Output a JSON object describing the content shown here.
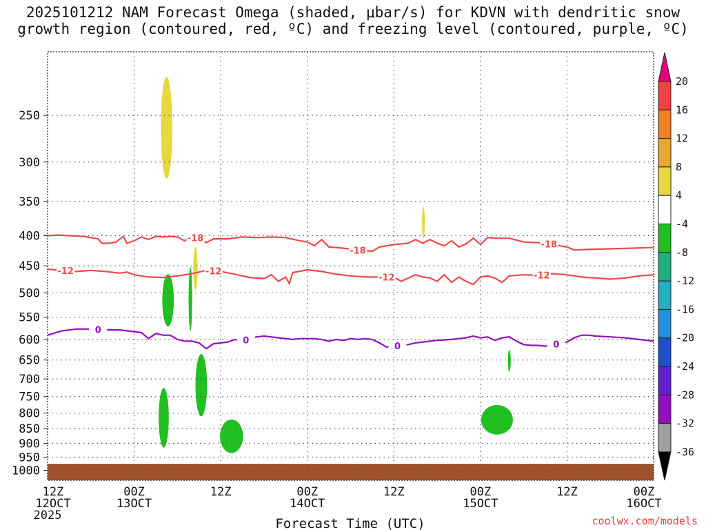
{
  "title_line1": "2025101212 NAM Forecast Omega (shaded, μbar/s) for KDVN with dendritic snow",
  "title_line2": "growth region (contoured, red, ºC) and freezing level (contoured, purple, ºC)",
  "credit": "coolwx.com/models",
  "chart_data": {
    "type": "time-height cross section",
    "xlabel": "Forecast Time (UTC)",
    "x_ticks": [
      {
        "hour": 0,
        "line1": "12Z",
        "line2": "12OCT",
        "line3": "2025"
      },
      {
        "hour": 12,
        "line1": "00Z",
        "line2": "13OCT",
        "line3": ""
      },
      {
        "hour": 24,
        "line1": "12Z",
        "line2": "",
        "line3": ""
      },
      {
        "hour": 36,
        "line1": "00Z",
        "line2": "14OCT",
        "line3": ""
      },
      {
        "hour": 48,
        "line1": "12Z",
        "line2": "",
        "line3": ""
      },
      {
        "hour": 60,
        "line1": "00Z",
        "line2": "15OCT",
        "line3": ""
      },
      {
        "hour": 72,
        "line1": "12Z",
        "line2": "",
        "line3": ""
      },
      {
        "hour": 84,
        "line1": "00Z",
        "line2": "16OCT",
        "line3": ""
      }
    ],
    "y_ticks": [
      250,
      300,
      350,
      400,
      450,
      500,
      550,
      600,
      650,
      700,
      750,
      800,
      850,
      900,
      950,
      1000
    ],
    "ylim_hPa": [
      195,
      1040
    ],
    "y_scale": "log",
    "xlim_hours": [
      0,
      84
    ],
    "grid": "dotted",
    "colorbar": {
      "labels": [
        "20",
        "16",
        "12",
        "8",
        "4",
        "-4",
        "-8",
        "-12",
        "-16",
        "-20",
        "-24",
        "-28",
        "-32",
        "-36"
      ],
      "colors": [
        "#e8007a",
        "#f04040",
        "#f08020",
        "#e8a830",
        "#e8d840",
        "#ffffff",
        "#20c020",
        "#20b080",
        "#20b0c0",
        "#2090e0",
        "#2050d0",
        "#6020d0",
        "#9010c0",
        "#a0a0a0",
        "#000000"
      ]
    },
    "contours": [
      {
        "label": "-18",
        "color": "#f04848",
        "label_hours": [
          20.5,
          43,
          69.5
        ],
        "points": [
          [
            0,
            400
          ],
          [
            1.5,
            399
          ],
          [
            3,
            400
          ],
          [
            5,
            401
          ],
          [
            7,
            405
          ],
          [
            7.5,
            412
          ],
          [
            8.5,
            412
          ],
          [
            9.5,
            410
          ],
          [
            10.5,
            401
          ],
          [
            11,
            412
          ],
          [
            12,
            408
          ],
          [
            13,
            402
          ],
          [
            14,
            406
          ],
          [
            15,
            401
          ],
          [
            16,
            402
          ],
          [
            17,
            401
          ],
          [
            18,
            402
          ],
          [
            19,
            408
          ],
          [
            20,
            402
          ],
          [
            21,
            404
          ],
          [
            22,
            411
          ],
          [
            23,
            405
          ],
          [
            25,
            405
          ],
          [
            27,
            402
          ],
          [
            29,
            403
          ],
          [
            31,
            402
          ],
          [
            33,
            403
          ],
          [
            35,
            408
          ],
          [
            36,
            410
          ],
          [
            37,
            416
          ],
          [
            38,
            406
          ],
          [
            39,
            418
          ],
          [
            41,
            420
          ],
          [
            43,
            423
          ],
          [
            45,
            425
          ],
          [
            46,
            418
          ],
          [
            48,
            414
          ],
          [
            50,
            412
          ],
          [
            51,
            406
          ],
          [
            52,
            412
          ],
          [
            53,
            406
          ],
          [
            54,
            412
          ],
          [
            55,
            416
          ],
          [
            56,
            408
          ],
          [
            57,
            418
          ],
          [
            58,
            413
          ],
          [
            59,
            404
          ],
          [
            60,
            414
          ],
          [
            61,
            403
          ],
          [
            62,
            404
          ],
          [
            64,
            404
          ],
          [
            66,
            410
          ],
          [
            68,
            411
          ],
          [
            70,
            414
          ],
          [
            72,
            418
          ],
          [
            73,
            423
          ],
          [
            75,
            422
          ],
          [
            78,
            421
          ],
          [
            81,
            420
          ],
          [
            84,
            419
          ]
        ]
      },
      {
        "label": "-12",
        "color": "#f04848",
        "label_hours": [
          2.5,
          23,
          47,
          68.5
        ],
        "points": [
          [
            0,
            456
          ],
          [
            2,
            458
          ],
          [
            4,
            460
          ],
          [
            6,
            458
          ],
          [
            8,
            460
          ],
          [
            10,
            463
          ],
          [
            11,
            461
          ],
          [
            12,
            466
          ],
          [
            14,
            470
          ],
          [
            16,
            471
          ],
          [
            18,
            468
          ],
          [
            20,
            464
          ],
          [
            22,
            458
          ],
          [
            24,
            460
          ],
          [
            26,
            465
          ],
          [
            28,
            471
          ],
          [
            30,
            473
          ],
          [
            31,
            466
          ],
          [
            32,
            478
          ],
          [
            33,
            470
          ],
          [
            33.5,
            482
          ],
          [
            34,
            462
          ],
          [
            36,
            457
          ],
          [
            38,
            460
          ],
          [
            40,
            465
          ],
          [
            42,
            468
          ],
          [
            44,
            470
          ],
          [
            46,
            470
          ],
          [
            48,
            470
          ],
          [
            49,
            478
          ],
          [
            50,
            472
          ],
          [
            51,
            466
          ],
          [
            52,
            470
          ],
          [
            53,
            472
          ],
          [
            54,
            478
          ],
          [
            55,
            466
          ],
          [
            56,
            480
          ],
          [
            57,
            470
          ],
          [
            58,
            478
          ],
          [
            59,
            484
          ],
          [
            60,
            470
          ],
          [
            61,
            468
          ],
          [
            62,
            472
          ],
          [
            63,
            480
          ],
          [
            64,
            468
          ],
          [
            66,
            466
          ],
          [
            68,
            467
          ],
          [
            70,
            464
          ],
          [
            72,
            466
          ],
          [
            74,
            470
          ],
          [
            76,
            472
          ],
          [
            78,
            474
          ],
          [
            80,
            472
          ],
          [
            82,
            468
          ],
          [
            84,
            466
          ]
        ]
      },
      {
        "label": "0",
        "color": "#9010c0",
        "label_hours": [
          7,
          27.5,
          48.5,
          70.5
        ],
        "points": [
          [
            0,
            590
          ],
          [
            2,
            580
          ],
          [
            4,
            576
          ],
          [
            6,
            576
          ],
          [
            8,
            578
          ],
          [
            10,
            578
          ],
          [
            12,
            582
          ],
          [
            13,
            584
          ],
          [
            14,
            598
          ],
          [
            15,
            586
          ],
          [
            16,
            590
          ],
          [
            17,
            590
          ],
          [
            18,
            600
          ],
          [
            19,
            604
          ],
          [
            20,
            604
          ],
          [
            21,
            608
          ],
          [
            22,
            622
          ],
          [
            23,
            610
          ],
          [
            24,
            608
          ],
          [
            25,
            606
          ],
          [
            26,
            600
          ],
          [
            27,
            605
          ],
          [
            28,
            596
          ],
          [
            29,
            594
          ],
          [
            30,
            592
          ],
          [
            31,
            594
          ],
          [
            32,
            596
          ],
          [
            33,
            598
          ],
          [
            34,
            600
          ],
          [
            35,
            598
          ],
          [
            36,
            598
          ],
          [
            37,
            598
          ],
          [
            38,
            600
          ],
          [
            39,
            604
          ],
          [
            40,
            600
          ],
          [
            41,
            602
          ],
          [
            42,
            598
          ],
          [
            43,
            600
          ],
          [
            44,
            598
          ],
          [
            45,
            600
          ],
          [
            46,
            608
          ],
          [
            47,
            618
          ],
          [
            48,
            616
          ],
          [
            49,
            614
          ],
          [
            50,
            612
          ],
          [
            51,
            608
          ],
          [
            52,
            606
          ],
          [
            54,
            602
          ],
          [
            56,
            600
          ],
          [
            57,
            598
          ],
          [
            58,
            596
          ],
          [
            59,
            592
          ],
          [
            60,
            596
          ],
          [
            61,
            594
          ],
          [
            62,
            602
          ],
          [
            63,
            596
          ],
          [
            64,
            594
          ],
          [
            65,
            604
          ],
          [
            66,
            612
          ],
          [
            67,
            614
          ],
          [
            68,
            614
          ],
          [
            69,
            616
          ],
          [
            70,
            612
          ],
          [
            71,
            610
          ],
          [
            72,
            606
          ],
          [
            73,
            596
          ],
          [
            74,
            590
          ],
          [
            75,
            590
          ],
          [
            76,
            592
          ],
          [
            78,
            594
          ],
          [
            80,
            596
          ],
          [
            82,
            600
          ],
          [
            84,
            604
          ]
        ]
      }
    ],
    "shaded_regions": [
      {
        "level": "4 to 8",
        "color": "#e8d840",
        "center_hour": 16.5,
        "top_hPa": 215,
        "bottom_hPa": 320,
        "halfwidth_hours": 0.8
      },
      {
        "level": "4 to 8",
        "color": "#e8d840",
        "center_hour": 52.1,
        "top_hPa": 357,
        "bottom_hPa": 405,
        "halfwidth_hours": 0.15
      },
      {
        "level": "4 to 8",
        "color": "#e8d840",
        "center_hour": 20.5,
        "top_hPa": 418,
        "bottom_hPa": 495,
        "halfwidth_hours": 0.3
      },
      {
        "level": "-4 to -8",
        "color": "#20c020",
        "center_hour": 16.7,
        "top_hPa": 465,
        "bottom_hPa": 570,
        "halfwidth_hours": 0.8
      },
      {
        "level": "-4 to -8",
        "color": "#20c020",
        "center_hour": 19.8,
        "top_hPa": 452,
        "bottom_hPa": 580,
        "halfwidth_hours": 0.25
      },
      {
        "level": "-4 to -8",
        "color": "#20c020",
        "center_hour": 21.3,
        "top_hPa": 635,
        "bottom_hPa": 810,
        "halfwidth_hours": 0.8
      },
      {
        "level": "-4 to -8",
        "color": "#20c020",
        "center_hour": 16.1,
        "top_hPa": 725,
        "bottom_hPa": 915,
        "halfwidth_hours": 0.7
      },
      {
        "level": "-4 to -8",
        "color": "#20c020",
        "center_hour": 25.5,
        "top_hPa": 820,
        "bottom_hPa": 935,
        "halfwidth_hours": 1.6
      },
      {
        "level": "-4 to -8",
        "color": "#20c020",
        "center_hour": 62.3,
        "top_hPa": 775,
        "bottom_hPa": 870,
        "halfwidth_hours": 2.2
      },
      {
        "level": "-4 to -8",
        "color": "#20c020",
        "center_hour": 64.0,
        "top_hPa": 625,
        "bottom_hPa": 680,
        "halfwidth_hours": 0.2
      }
    ],
    "terrain_top_hPa": 975
  }
}
